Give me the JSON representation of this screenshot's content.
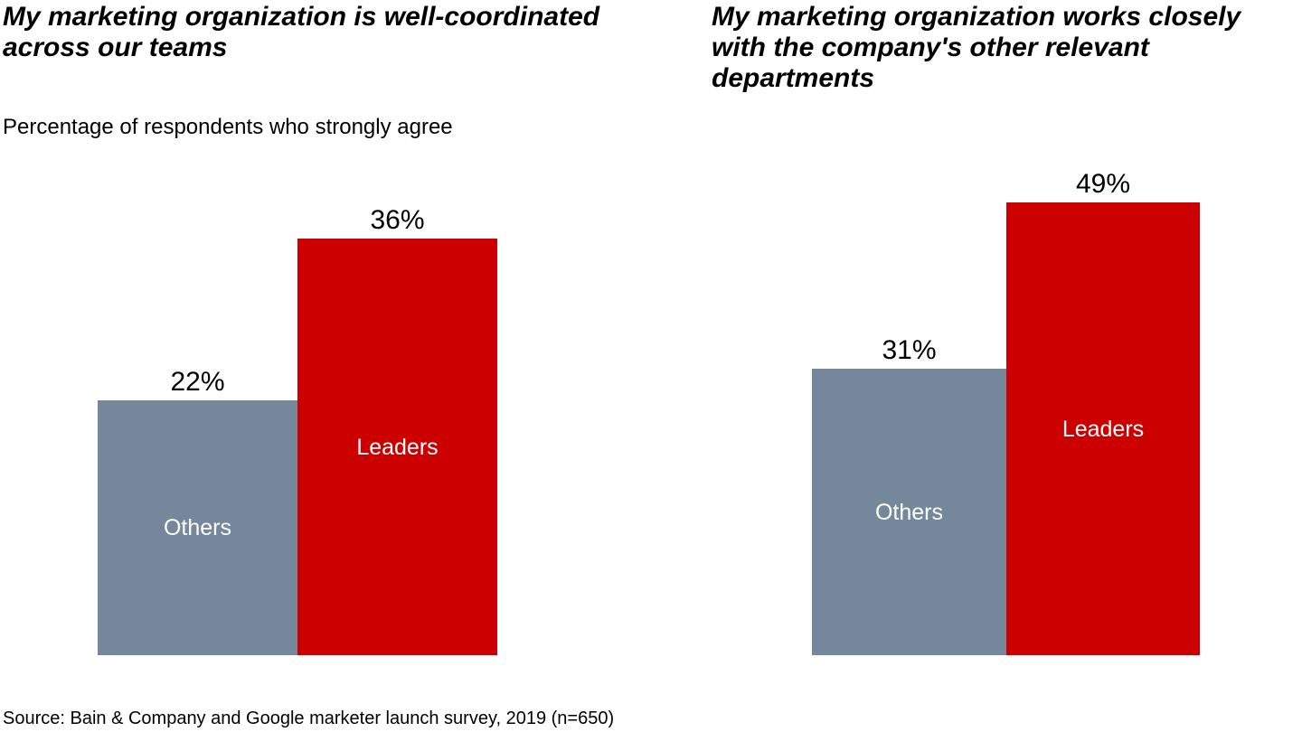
{
  "subtitle": "Percentage of respondents who strongly agree",
  "source": "Source: Bain & Company and Google marketer launch survey, 2019 (n=650)",
  "colors": {
    "others_bar": "#75889B",
    "leaders_bar": "#CC0000",
    "bar_label_text": "#FFFFFF",
    "value_label_text": "#000000"
  },
  "chart_data": [
    {
      "type": "bar",
      "title": "My marketing organization is well-coordinated across our teams",
      "subtitle": "Percentage of respondents who strongly agree",
      "categories": [
        "Others",
        "Leaders"
      ],
      "values": [
        22,
        36
      ],
      "value_labels": [
        "22%",
        "36%"
      ],
      "series_colors": [
        "#75889B",
        "#CC0000"
      ],
      "unit": "%",
      "ylim": [
        0,
        36
      ],
      "grid": false,
      "axes": "hidden",
      "value_label_position": "above-bar",
      "category_label_position": "inside-bar-center"
    },
    {
      "type": "bar",
      "title": "My marketing organization works closely with the company's other relevant departments",
      "subtitle": "Percentage of respondents who strongly agree",
      "categories": [
        "Others",
        "Leaders"
      ],
      "values": [
        31,
        49
      ],
      "value_labels": [
        "31%",
        "49%"
      ],
      "series_colors": [
        "#75889B",
        "#CC0000"
      ],
      "unit": "%",
      "ylim": [
        0,
        49
      ],
      "grid": false,
      "axes": "hidden",
      "value_label_position": "above-bar",
      "category_label_position": "inside-bar-center"
    }
  ]
}
